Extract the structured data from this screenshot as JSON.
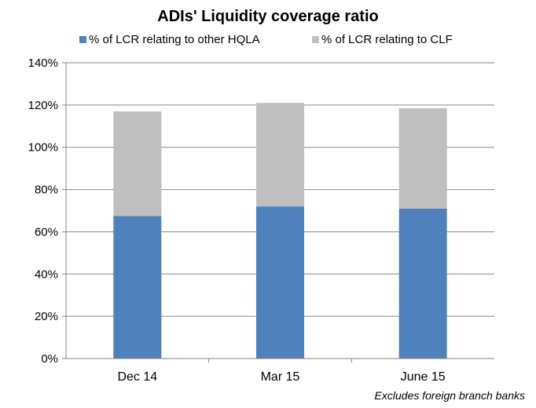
{
  "chart_data": {
    "type": "bar",
    "stacked": true,
    "title": "ADIs' Liquidity coverage ratio",
    "categories": [
      "Dec 14",
      "Mar 15",
      "June 15"
    ],
    "series": [
      {
        "name": "% of LCR relating to other HQLA",
        "color": "#4f81bd",
        "values": [
          67.5,
          72,
          71
        ]
      },
      {
        "name": "% of LCR relating to CLF",
        "color": "#bfbfbf",
        "values": [
          49.5,
          49,
          47.5
        ]
      }
    ],
    "ylim": [
      0,
      140
    ],
    "yticks": [
      0,
      20,
      40,
      60,
      80,
      100,
      120,
      140
    ],
    "ytick_labels": [
      "0%",
      "20%",
      "40%",
      "60%",
      "80%",
      "100%",
      "120%",
      "140%"
    ],
    "grid": true,
    "legend_position": "top",
    "xlabel": "",
    "ylabel": ""
  },
  "note": "Excludes foreign branch banks"
}
